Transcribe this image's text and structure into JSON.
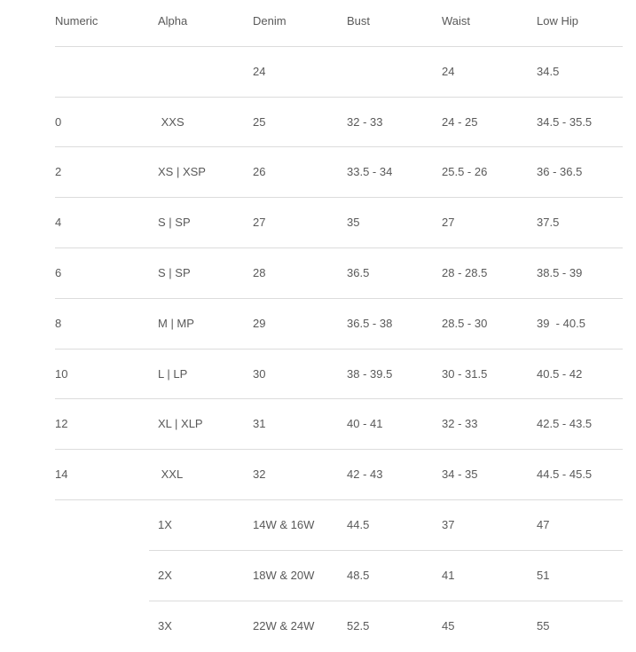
{
  "columns": [
    "Numeric",
    "Alpha",
    "Denim",
    "Bust",
    "Waist",
    "Low Hip"
  ],
  "rows": [
    [
      "",
      "",
      "24",
      "",
      "24",
      "34.5"
    ],
    [
      "0",
      " XXS",
      "25",
      "32 - 33",
      "24 - 25",
      "34.5 - 35.5"
    ],
    [
      "2",
      "XS | XSP",
      "26",
      "33.5 - 34",
      "25.5 - 26",
      "36 - 36.5"
    ],
    [
      "4",
      "S | SP",
      "27",
      "35",
      "27",
      "37.5"
    ],
    [
      "6",
      "S | SP",
      "28",
      "36.5",
      "28 - 28.5",
      "38.5 - 39"
    ],
    [
      "8",
      "M | MP",
      "29",
      "36.5 - 38",
      "28.5 - 30",
      "39  - 40.5"
    ],
    [
      "10",
      "L | LP",
      "30",
      "38 - 39.5",
      "30 - 31.5",
      "40.5 - 42"
    ],
    [
      "12",
      "XL | XLP",
      "31",
      "40 - 41",
      "32 - 33",
      "42.5 - 43.5"
    ],
    [
      "14",
      " XXL",
      "32",
      "42 - 43",
      "34 - 35",
      "44.5 - 45.5"
    ],
    [
      "",
      "1X",
      "14W & 16W",
      "44.5",
      "37",
      "47"
    ],
    [
      "",
      "2X",
      "18W & 20W",
      "48.5",
      "41",
      "51"
    ],
    [
      "",
      "3X",
      "22W & 24W",
      "52.5",
      "45",
      "55"
    ]
  ],
  "colors": {
    "text": "#595959",
    "border": "#dcdcdc"
  }
}
